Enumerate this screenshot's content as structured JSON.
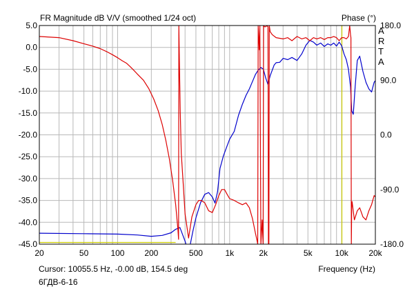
{
  "chart_data": {
    "type": "line",
    "title": "FR Magnitude dB V/V (smoothed 1/24 oct)",
    "right_axis_title": "Phase (°)",
    "brand_letters": [
      "A",
      "R",
      "T",
      "A"
    ],
    "xlabel": "Frequency (Hz)",
    "x_scale": "log",
    "xlim": [
      20,
      20000
    ],
    "x_ticks": [
      {
        "v": 20,
        "label": "20"
      },
      {
        "v": 50,
        "label": "50"
      },
      {
        "v": 100,
        "label": "100"
      },
      {
        "v": 200,
        "label": "200"
      },
      {
        "v": 500,
        "label": "500"
      },
      {
        "v": 1000,
        "label": "1k"
      },
      {
        "v": 2000,
        "label": "2k"
      },
      {
        "v": 5000,
        "label": "5k"
      },
      {
        "v": 10000,
        "label": "10k"
      },
      {
        "v": 20000,
        "label": "20k"
      }
    ],
    "ylim": [
      -45,
      5
    ],
    "y_ticks": [
      {
        "v": 5,
        "label": "5.0"
      },
      {
        "v": 0,
        "label": "0.0"
      },
      {
        "v": -5,
        "label": "-5.0"
      },
      {
        "v": -10,
        "label": "-10.0"
      },
      {
        "v": -15,
        "label": "-15.0"
      },
      {
        "v": -20,
        "label": "-20.0"
      },
      {
        "v": -25,
        "label": "-25.0"
      },
      {
        "v": -30,
        "label": "-30.0"
      },
      {
        "v": -35,
        "label": "-35.0"
      },
      {
        "v": -40,
        "label": "-40.0"
      },
      {
        "v": -45,
        "label": "-45.0"
      }
    ],
    "y2lim": [
      -180,
      180
    ],
    "y2_ticks": [
      {
        "v": 180,
        "label": "180.0"
      },
      {
        "v": 90,
        "label": "90.0"
      },
      {
        "v": 0,
        "label": "0.0"
      },
      {
        "v": -90,
        "label": "-90.0"
      },
      {
        "v": -180,
        "label": "-180.0"
      }
    ],
    "grid": true,
    "series": [
      {
        "color": "#0000cc",
        "axis": "left",
        "x": [
          20,
          50,
          100,
          150,
          200,
          250,
          300,
          330,
          360,
          380,
          400,
          430,
          470,
          500,
          550,
          600,
          650,
          700,
          740,
          780,
          820,
          880,
          950,
          1000,
          1100,
          1200,
          1300,
          1400,
          1500,
          1600,
          1700,
          1800,
          1900,
          2000,
          2100,
          2200,
          2300,
          2500,
          2600,
          2800,
          3000,
          3300,
          3600,
          4000,
          4400,
          4800,
          5200,
          5600,
          6000,
          6500,
          7000,
          7500,
          8000,
          8500,
          9000,
          9500,
          10000,
          10500,
          11000,
          11500,
          12000,
          12300,
          12700,
          13200,
          13800,
          14500,
          15500,
          16500,
          17500,
          18500,
          19500,
          20000
        ],
        "y": [
          -42.5,
          -42.6,
          -42.7,
          -42.9,
          -43.2,
          -43.0,
          -42.4,
          -41.6,
          -41.2,
          -42.8,
          -44.3,
          -47.0,
          -42.0,
          -39.0,
          -35.5,
          -33.6,
          -33.2,
          -34.2,
          -35.6,
          -33.0,
          -27.7,
          -24.8,
          -22.5,
          -21.0,
          -19.2,
          -15.5,
          -13.0,
          -11.0,
          -9.5,
          -7.8,
          -6.2,
          -5.2,
          -4.6,
          -5.0,
          -7.0,
          -8.5,
          -6.5,
          -4.0,
          -3.5,
          -3.4,
          -2.5,
          -2.8,
          -2.3,
          -3.0,
          -1.5,
          0.5,
          1.6,
          1.2,
          0.5,
          1.0,
          0.2,
          0.8,
          0.5,
          1.0,
          0.3,
          1.2,
          0.4,
          -1.5,
          -2.8,
          -5.0,
          -9.0,
          -14.5,
          -15.3,
          -9.0,
          -3.0,
          -2.0,
          -5.5,
          -8.0,
          -9.5,
          -10.2,
          -8.0,
          -7.6
        ]
      },
      {
        "color": "#dd0000",
        "axis": "right",
        "x": [
          20,
          30,
          40,
          50,
          60,
          70,
          80,
          90,
          100,
          110,
          120,
          130,
          140,
          150,
          170,
          190,
          210,
          230,
          250,
          270,
          290,
          310,
          330,
          345,
          350,
          352,
          356,
          362,
          370,
          385,
          400,
          430,
          460,
          500,
          530,
          560,
          600,
          650,
          700,
          750,
          800,
          850,
          900,
          950,
          1000,
          1100,
          1200,
          1300,
          1400,
          1500,
          1600,
          1700,
          1760,
          1780,
          1800,
          1820,
          1840,
          1860,
          1900,
          1950,
          1990,
          2010,
          2050,
          2100,
          2150,
          2200,
          2220,
          2240,
          2260,
          2300,
          2400,
          2600,
          3000,
          3300,
          3600,
          4000,
          4400,
          4800,
          5200,
          5600,
          6000,
          6500,
          7000,
          7500,
          8000,
          8500,
          9000,
          9500,
          10000,
          10500,
          11000,
          11500,
          11800,
          12000,
          12100,
          12200,
          12300,
          12400,
          13000,
          13800,
          14500,
          15500,
          16500,
          17500,
          18500,
          19500,
          20000
        ],
        "y": [
          162,
          160,
          155,
          150,
          146,
          142,
          137,
          132,
          127,
          122,
          118,
          112,
          106,
          100,
          90,
          76,
          59,
          40,
          17,
          -10,
          -40,
          -75,
          -115,
          -155,
          -172,
          180,
          120,
          40,
          -30,
          -80,
          -130,
          -170,
          -135,
          -115,
          -108,
          -108,
          -112,
          -125,
          -128,
          -115,
          -100,
          -90,
          -90,
          -98,
          -105,
          -108,
          -112,
          -115,
          -112,
          -120,
          -138,
          -162,
          -175,
          -180,
          180,
          160,
          140,
          180,
          -180,
          -140,
          -180,
          180,
          178,
          178,
          180,
          178,
          -180,
          -180,
          180,
          170,
          165,
          160,
          158,
          160,
          155,
          162,
          158,
          160,
          155,
          160,
          158,
          160,
          157,
          160,
          160,
          162,
          160,
          155,
          160,
          160,
          158,
          162,
          180,
          165,
          160,
          -180,
          -120,
          -110,
          -140,
          -125,
          -120,
          -135,
          -140,
          -125,
          -115,
          -100,
          -102
        ]
      },
      {
        "color": "#cccc00",
        "axis": "left",
        "x": [
          20,
          330
        ],
        "y": [
          -44.6,
          -44.6
        ]
      }
    ],
    "cursor": {
      "x": 10055.5,
      "color": "#cccc00"
    },
    "annotations": {
      "cursor_readout": "Cursor: 10055.5 Hz, -0.00 dB, 154.5 deg",
      "caption": "6ГДВ-6-16"
    }
  }
}
